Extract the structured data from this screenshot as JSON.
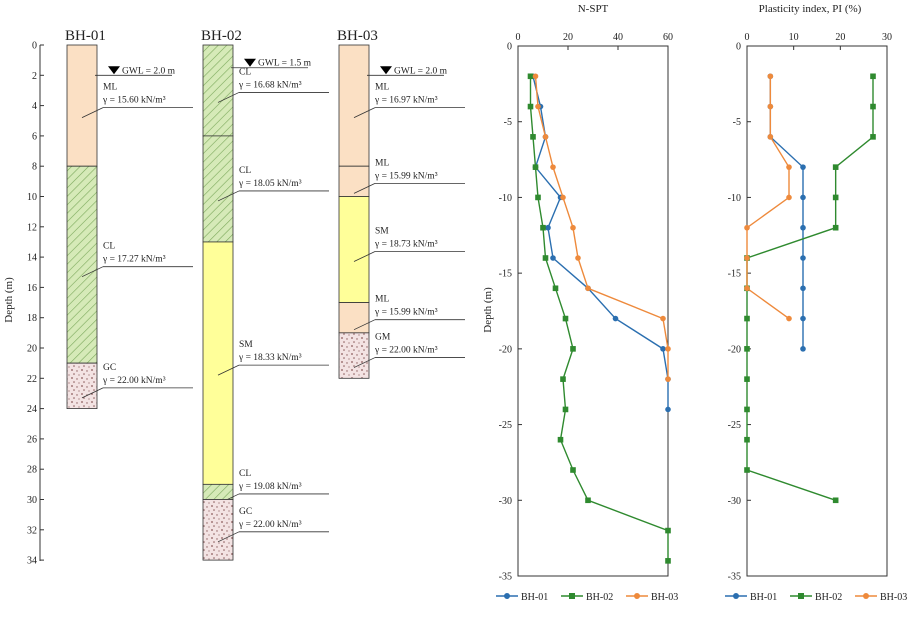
{
  "colors": {
    "ML": "#fbe0c4",
    "CL": "#d6eab8",
    "SM": "#ffff99",
    "gravel": "#f3e3e3",
    "BH-01": "#2b6fb0",
    "BH-02": "#2f8a2f",
    "BH-03": "#ee8a3c"
  },
  "log_axis": {
    "title": "Depth (m)",
    "ticks": [
      0,
      2,
      4,
      6,
      8,
      10,
      12,
      14,
      16,
      18,
      20,
      22,
      24,
      26,
      28,
      30,
      32,
      34
    ]
  },
  "boreholes": [
    {
      "name": "BH-01",
      "gwl": "GWL = 2.0 m",
      "bottom": 24,
      "layers": [
        {
          "from": 0,
          "to": 8,
          "type": "ML",
          "symbol": "ML",
          "gamma": "γ = 15.60 kN/m³"
        },
        {
          "from": 8,
          "to": 21,
          "type": "CL",
          "symbol": "CL",
          "gamma": "γ = 17.27 kN/m³"
        },
        {
          "from": 21,
          "to": 24,
          "type": "gravel",
          "symbol": "GC",
          "gamma": "γ = 22.00 kN/m³"
        }
      ]
    },
    {
      "name": "BH-02",
      "gwl": "GWL = 1.5 m",
      "bottom": 34,
      "layers": [
        {
          "from": 0,
          "to": 6,
          "type": "CL",
          "symbol": "CL",
          "gamma": "γ = 16.68 kN/m³"
        },
        {
          "from": 6,
          "to": 13,
          "type": "CL",
          "symbol": "CL",
          "gamma": "γ = 18.05 kN/m³"
        },
        {
          "from": 13,
          "to": 29,
          "type": "SM",
          "symbol": "SM",
          "gamma": "γ = 18.33 kN/m³"
        },
        {
          "from": 29,
          "to": 30,
          "type": "CL",
          "symbol": "CL",
          "gamma": "γ = 19.08 kN/m³"
        },
        {
          "from": 30,
          "to": 34,
          "type": "gravel",
          "symbol": "GC",
          "gamma": "γ = 22.00 kN/m³"
        }
      ]
    },
    {
      "name": "BH-03",
      "gwl": "GWL = 2.0 m",
      "bottom": 22,
      "layers": [
        {
          "from": 0,
          "to": 8,
          "type": "ML",
          "symbol": "ML",
          "gamma": "γ = 16.97 kN/m³"
        },
        {
          "from": 8,
          "to": 10,
          "type": "ML",
          "symbol": "ML",
          "gamma": "γ = 15.99 kN/m³"
        },
        {
          "from": 10,
          "to": 17,
          "type": "SM",
          "symbol": "SM",
          "gamma": "γ = 18.73 kN/m³"
        },
        {
          "from": 17,
          "to": 19,
          "type": "ML",
          "symbol": "ML",
          "gamma": "γ = 15.99 kN/m³"
        },
        {
          "from": 19,
          "to": 22,
          "type": "gravel",
          "symbol": "GM",
          "gamma": "γ = 22.00 kN/m³"
        }
      ]
    }
  ],
  "chart_data": [
    {
      "type": "line",
      "title": "N-SPT",
      "ylabel": "Depth (m)",
      "xlim": [
        0,
        60
      ],
      "ylim": [
        -35,
        0
      ],
      "xticks": [
        0,
        20,
        40,
        60
      ],
      "yticks": [
        0,
        -5,
        -10,
        -15,
        -20,
        -25,
        -30,
        -35
      ],
      "legend": "bottom",
      "series": [
        {
          "name": "BH-01",
          "points": [
            [
              6,
              -2
            ],
            [
              9,
              -4
            ],
            [
              11,
              -6
            ],
            [
              7,
              -8
            ],
            [
              17,
              -10
            ],
            [
              12,
              -12
            ],
            [
              14,
              -14
            ],
            [
              28,
              -16
            ],
            [
              39,
              -18
            ],
            [
              58,
              -20
            ],
            [
              60,
              -22
            ],
            [
              60,
              -24
            ]
          ]
        },
        {
          "name": "BH-02",
          "points": [
            [
              5,
              -2
            ],
            [
              5,
              -4
            ],
            [
              6,
              -6
            ],
            [
              7,
              -8
            ],
            [
              8,
              -10
            ],
            [
              10,
              -12
            ],
            [
              11,
              -14
            ],
            [
              15,
              -16
            ],
            [
              19,
              -18
            ],
            [
              22,
              -20
            ],
            [
              18,
              -22
            ],
            [
              19,
              -24
            ],
            [
              17,
              -26
            ],
            [
              22,
              -28
            ],
            [
              28,
              -30
            ],
            [
              60,
              -32
            ],
            [
              60,
              -34
            ]
          ]
        },
        {
          "name": "BH-03",
          "points": [
            [
              7,
              -2
            ],
            [
              8,
              -4
            ],
            [
              11,
              -6
            ],
            [
              14,
              -8
            ],
            [
              18,
              -10
            ],
            [
              22,
              -12
            ],
            [
              24,
              -14
            ],
            [
              28,
              -16
            ],
            [
              58,
              -18
            ],
            [
              60,
              -20
            ],
            [
              60,
              -22
            ]
          ]
        }
      ]
    },
    {
      "type": "line",
      "title": "Plasticity index, PI (%)",
      "xlim": [
        0,
        30
      ],
      "ylim": [
        -35,
        0
      ],
      "xticks": [
        0,
        10,
        20,
        30
      ],
      "yticks": [
        0,
        -5,
        -10,
        -15,
        -20,
        -25,
        -30,
        -35
      ],
      "legend": "bottom",
      "series": [
        {
          "name": "BH-01",
          "points": [
            [
              5,
              -2
            ],
            [
              5,
              -4
            ],
            [
              5,
              -6
            ],
            [
              12,
              -8
            ],
            [
              12,
              -10
            ],
            [
              12,
              -12
            ],
            [
              12,
              -14
            ],
            [
              12,
              -16
            ],
            [
              12,
              -18
            ],
            [
              12,
              -20
            ]
          ]
        },
        {
          "name": "BH-02",
          "points": [
            [
              27,
              -2
            ],
            [
              27,
              -4
            ],
            [
              27,
              -6
            ],
            [
              19,
              -8
            ],
            [
              19,
              -10
            ],
            [
              19,
              -12
            ],
            [
              0,
              -14
            ],
            [
              0,
              -16
            ],
            [
              0,
              -18
            ],
            [
              0,
              -20
            ],
            [
              0,
              -22
            ],
            [
              0,
              -24
            ],
            [
              0,
              -26
            ],
            [
              0,
              -28
            ],
            [
              19,
              -30
            ]
          ]
        },
        {
          "name": "BH-03",
          "points": [
            [
              5,
              -2
            ],
            [
              5,
              -4
            ],
            [
              5,
              -6
            ],
            [
              9,
              -8
            ],
            [
              9,
              -10
            ],
            [
              0,
              -12
            ],
            [
              0,
              -14
            ],
            [
              0,
              -16
            ],
            [
              9,
              -18
            ]
          ]
        }
      ]
    }
  ]
}
